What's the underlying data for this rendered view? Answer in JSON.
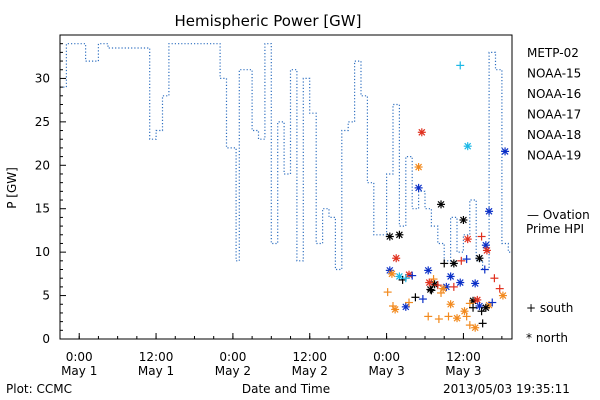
{
  "chart_data": {
    "type": "scatter",
    "title": "Hemispheric Power [GW]",
    "ylabel": "P [GW]",
    "xlabel": "Date and Time",
    "ylim": [
      0,
      35
    ],
    "yticks": [
      0,
      5,
      10,
      15,
      20,
      25,
      30
    ],
    "xlim": [
      "2013-04-30T21:00",
      "2013-05-03T19:35"
    ],
    "xticks": [
      {
        "time": "2013-05-01T00:00",
        "line1": "0:00",
        "line2": "May 1"
      },
      {
        "time": "2013-05-01T12:00",
        "line1": "12:00",
        "line2": "May 1"
      },
      {
        "time": "2013-05-02T00:00",
        "line1": "0:00",
        "line2": "May 2"
      },
      {
        "time": "2013-05-02T12:00",
        "line1": "12:00",
        "line2": "May 2"
      },
      {
        "time": "2013-05-03T00:00",
        "line1": "0:00",
        "line2": "May 3"
      },
      {
        "time": "2013-05-03T12:00",
        "line1": "12:00",
        "line2": "May 3"
      }
    ],
    "ovation_label": [
      "— Ovation",
      "Prime HPI"
    ],
    "ovation_color": "#3070c0",
    "ovation_series": {
      "name": "Ovation Prime HPI",
      "x": [
        "2013-04-30T21:00",
        "2013-04-30T22:00",
        "2013-04-30T22:00",
        "2013-05-01T01:00",
        "2013-05-01T01:00",
        "2013-05-01T03:00",
        "2013-05-01T03:00",
        "2013-05-01T04:30",
        "2013-05-01T04:30",
        "2013-05-01T11:00",
        "2013-05-01T11:00",
        "2013-05-01T12:00",
        "2013-05-01T12:00",
        "2013-05-01T13:00",
        "2013-05-01T13:00",
        "2013-05-01T14:00",
        "2013-05-01T14:00",
        "2013-05-01T22:00",
        "2013-05-01T22:00",
        "2013-05-01T23:00",
        "2013-05-01T23:00",
        "2013-05-02T00:30",
        "2013-05-02T00:30",
        "2013-05-02T01:00",
        "2013-05-02T01:00",
        "2013-05-02T03:00",
        "2013-05-02T03:00",
        "2013-05-02T04:00",
        "2013-05-02T04:00",
        "2013-05-02T05:00",
        "2013-05-02T05:00",
        "2013-05-02T06:00",
        "2013-05-02T06:00",
        "2013-05-02T07:00",
        "2013-05-02T07:00",
        "2013-05-02T08:00",
        "2013-05-02T08:00",
        "2013-05-02T09:00",
        "2013-05-02T09:00",
        "2013-05-02T10:00",
        "2013-05-02T10:00",
        "2013-05-02T11:00",
        "2013-05-02T11:00",
        "2013-05-02T12:00",
        "2013-05-02T12:00",
        "2013-05-02T13:00",
        "2013-05-02T13:00",
        "2013-05-02T14:00",
        "2013-05-02T14:00",
        "2013-05-02T15:00",
        "2013-05-02T15:00",
        "2013-05-02T16:00",
        "2013-05-02T16:00",
        "2013-05-02T17:00",
        "2013-05-02T17:00",
        "2013-05-02T18:00",
        "2013-05-02T18:00",
        "2013-05-02T19:00",
        "2013-05-02T19:00",
        "2013-05-02T20:00",
        "2013-05-02T20:00",
        "2013-05-02T21:00",
        "2013-05-02T21:00",
        "2013-05-02T22:00",
        "2013-05-02T22:00",
        "2013-05-03T00:00",
        "2013-05-03T00:00",
        "2013-05-03T01:00",
        "2013-05-03T01:00",
        "2013-05-03T02:00",
        "2013-05-03T02:00",
        "2013-05-03T03:00",
        "2013-05-03T03:00",
        "2013-05-03T04:00",
        "2013-05-03T04:00",
        "2013-05-03T05:00",
        "2013-05-03T05:00",
        "2013-05-03T06:00",
        "2013-05-03T06:00",
        "2013-05-03T07:00",
        "2013-05-03T07:00",
        "2013-05-03T08:00",
        "2013-05-03T08:00",
        "2013-05-03T09:00",
        "2013-05-03T09:00",
        "2013-05-03T10:00",
        "2013-05-03T10:00",
        "2013-05-03T11:00",
        "2013-05-03T11:00",
        "2013-05-03T12:00",
        "2013-05-03T12:00",
        "2013-05-03T13:00",
        "2013-05-03T13:00",
        "2013-05-03T14:00",
        "2013-05-03T14:00",
        "2013-05-03T15:00",
        "2013-05-03T15:00",
        "2013-05-03T16:00",
        "2013-05-03T16:00",
        "2013-05-03T17:00",
        "2013-05-03T17:00",
        "2013-05-03T18:00",
        "2013-05-03T18:00",
        "2013-05-03T19:00",
        "2013-05-03T19:00",
        "2013-05-03T19:35"
      ],
      "y": [
        29,
        29,
        34,
        34,
        32,
        32,
        34,
        34,
        33.5,
        33.5,
        23,
        23,
        24,
        24,
        28,
        28,
        34,
        34,
        30,
        30,
        22,
        22,
        9,
        9,
        31,
        31,
        24,
        24,
        23,
        23,
        34,
        34,
        11,
        11,
        25,
        25,
        19,
        19,
        31,
        31,
        9,
        9,
        30,
        30,
        26,
        26,
        11,
        11,
        15,
        15,
        14,
        14,
        8,
        8,
        24,
        24,
        25,
        25,
        32,
        32,
        28,
        28,
        18,
        18,
        12,
        12,
        19,
        19,
        27,
        27,
        13,
        13,
        21,
        21,
        15,
        15,
        17,
        17,
        15,
        15,
        13,
        13,
        11,
        11,
        9,
        9,
        14,
        14,
        10,
        10,
        12,
        12,
        16,
        16,
        9,
        9,
        8,
        8,
        33,
        33,
        31,
        31,
        11,
        11,
        10,
        10
      ]
    },
    "legend_series": [
      {
        "name": "METP-02",
        "color": "#000000"
      },
      {
        "name": "NOAA-15",
        "color": "#0a2fc7"
      },
      {
        "name": "NOAA-16",
        "color": "#1cb8e6"
      },
      {
        "name": "NOAA-17",
        "color": "#2ed17a"
      },
      {
        "name": "NOAA-18",
        "color": "#f28a1e"
      },
      {
        "name": "NOAA-19",
        "color": "#e0301e"
      }
    ],
    "marker_legend": [
      {
        "symbol": "+",
        "label": "south"
      },
      {
        "symbol": "*",
        "label": "north"
      }
    ],
    "points": [
      {
        "sat": "NOAA-19",
        "m": "*",
        "t": "2013-05-03T05:30",
        "y": 23.8
      },
      {
        "sat": "NOAA-18",
        "m": "*",
        "t": "2013-05-03T05:00",
        "y": 19.8
      },
      {
        "sat": "NOAA-15",
        "m": "*",
        "t": "2013-05-03T05:00",
        "y": 17.4
      },
      {
        "sat": "METP-02",
        "m": "*",
        "t": "2013-05-03T08:30",
        "y": 15.5
      },
      {
        "sat": "METP-02",
        "m": "*",
        "t": "2013-05-03T12:00",
        "y": 13.7
      },
      {
        "sat": "NOAA-15",
        "m": "*",
        "t": "2013-05-03T16:00",
        "y": 14.7
      },
      {
        "sat": "NOAA-16",
        "m": "*",
        "t": "2013-05-03T12:40",
        "y": 22.2
      },
      {
        "sat": "NOAA-16",
        "m": "+",
        "t": "2013-05-03T11:30",
        "y": 31.5
      },
      {
        "sat": "NOAA-15",
        "m": "*",
        "t": "2013-05-03T18:30",
        "y": 21.6
      },
      {
        "sat": "METP-02",
        "m": "*",
        "t": "2013-05-03T00:30",
        "y": 11.8
      },
      {
        "sat": "METP-02",
        "m": "*",
        "t": "2013-05-03T02:00",
        "y": 12.0
      },
      {
        "sat": "NOAA-19",
        "m": "*",
        "t": "2013-05-03T12:40",
        "y": 11.5
      },
      {
        "sat": "NOAA-19",
        "m": "+",
        "t": "2013-05-03T14:50",
        "y": 11.8
      },
      {
        "sat": "NOAA-15",
        "m": "*",
        "t": "2013-05-03T15:30",
        "y": 10.8
      },
      {
        "sat": "NOAA-19",
        "m": "*",
        "t": "2013-05-03T15:40",
        "y": 10.2
      },
      {
        "sat": "NOAA-19",
        "m": "*",
        "t": "2013-05-03T01:30",
        "y": 9.3
      },
      {
        "sat": "METP-02",
        "m": "*",
        "t": "2013-05-03T10:30",
        "y": 8.7
      },
      {
        "sat": "METP-02",
        "m": "*",
        "t": "2013-05-03T14:30",
        "y": 9.3
      },
      {
        "sat": "NOAA-15",
        "m": "+",
        "t": "2013-05-03T12:30",
        "y": 9.2
      },
      {
        "sat": "NOAA-19",
        "m": "+",
        "t": "2013-05-03T11:40",
        "y": 9.0
      },
      {
        "sat": "NOAA-15",
        "m": "*",
        "t": "2013-05-03T00:30",
        "y": 7.9
      },
      {
        "sat": "NOAA-16",
        "m": "*",
        "t": "2013-05-03T02:00",
        "y": 7.2
      },
      {
        "sat": "NOAA-18",
        "m": "*",
        "t": "2013-05-03T00:50",
        "y": 7.5
      },
      {
        "sat": "NOAA-15",
        "m": "*",
        "t": "2013-05-03T06:30",
        "y": 7.9
      },
      {
        "sat": "METP-02",
        "m": "+",
        "t": "2013-05-03T09:00",
        "y": 8.7
      },
      {
        "sat": "NOAA-19",
        "m": "*",
        "t": "2013-05-03T03:30",
        "y": 7.4
      },
      {
        "sat": "NOAA-15",
        "m": "+",
        "t": "2013-05-03T04:00",
        "y": 7.3
      },
      {
        "sat": "METP-02",
        "m": "+",
        "t": "2013-05-03T02:30",
        "y": 6.8
      },
      {
        "sat": "NOAA-18",
        "m": "+",
        "t": "2013-05-03T07:20",
        "y": 6.9
      },
      {
        "sat": "METP-02",
        "m": "*",
        "t": "2013-05-03T07:30",
        "y": 6.3
      },
      {
        "sat": "NOAA-15",
        "m": "*",
        "t": "2013-05-03T10:00",
        "y": 7.2
      },
      {
        "sat": "NOAA-16",
        "m": "+",
        "t": "2013-05-03T03:00",
        "y": 7.0
      },
      {
        "sat": "NOAA-19",
        "m": "+",
        "t": "2013-05-03T08:00",
        "y": 6.2
      },
      {
        "sat": "NOAA-18",
        "m": "+",
        "t": "2013-05-03T08:30",
        "y": 5.3
      },
      {
        "sat": "NOAA-15",
        "m": "*",
        "t": "2013-05-03T09:20",
        "y": 6.0
      },
      {
        "sat": "NOAA-19",
        "m": "+",
        "t": "2013-05-03T10:30",
        "y": 6.0
      },
      {
        "sat": "NOAA-18",
        "m": "*",
        "t": "2013-05-03T08:50",
        "y": 5.8
      },
      {
        "sat": "METP-02",
        "m": "+",
        "t": "2013-05-03T07:00",
        "y": 5.6
      },
      {
        "sat": "NOAA-15",
        "m": "*",
        "t": "2013-05-03T11:30",
        "y": 6.5
      },
      {
        "sat": "NOAA-15",
        "m": "*",
        "t": "2013-05-03T13:50",
        "y": 6.4
      },
      {
        "sat": "NOAA-15",
        "m": "+",
        "t": "2013-05-03T15:20",
        "y": 8.0
      },
      {
        "sat": "METP-02",
        "m": "+",
        "t": "2013-05-03T04:30",
        "y": 4.8
      },
      {
        "sat": "NOAA-15",
        "m": "+",
        "t": "2013-05-03T05:40",
        "y": 4.6
      },
      {
        "sat": "NOAA-18",
        "m": "+",
        "t": "2013-05-03T00:10",
        "y": 5.4
      },
      {
        "sat": "NOAA-18",
        "m": "+",
        "t": "2013-05-03T01:00",
        "y": 3.8
      },
      {
        "sat": "NOAA-18",
        "m": "*",
        "t": "2013-05-03T01:20",
        "y": 3.4
      },
      {
        "sat": "NOAA-15",
        "m": "*",
        "t": "2013-05-03T03:00",
        "y": 3.7
      },
      {
        "sat": "NOAA-18",
        "m": "+",
        "t": "2013-05-03T03:30",
        "y": 4.2
      },
      {
        "sat": "METP-02",
        "m": "*",
        "t": "2013-05-03T13:30",
        "y": 4.4
      },
      {
        "sat": "NOAA-19",
        "m": "*",
        "t": "2013-05-03T14:10",
        "y": 4.5
      },
      {
        "sat": "NOAA-18",
        "m": "*",
        "t": "2013-05-03T10:00",
        "y": 4.0
      },
      {
        "sat": "NOAA-18",
        "m": "*",
        "t": "2013-05-03T12:10",
        "y": 3.2
      },
      {
        "sat": "NOAA-18",
        "m": "+",
        "t": "2013-05-03T13:00",
        "y": 4.1
      },
      {
        "sat": "METP-02",
        "m": "+",
        "t": "2013-05-03T13:30",
        "y": 3.6
      },
      {
        "sat": "NOAA-15",
        "m": "*",
        "t": "2013-05-03T14:30",
        "y": 3.8
      },
      {
        "sat": "NOAA-18",
        "m": "*",
        "t": "2013-05-03T16:00",
        "y": 3.9
      },
      {
        "sat": "NOAA-15",
        "m": "+",
        "t": "2013-05-03T16:30",
        "y": 4.2
      },
      {
        "sat": "METP-02",
        "m": "*",
        "t": "2013-05-03T15:30",
        "y": 3.6
      },
      {
        "sat": "METP-02",
        "m": "+",
        "t": "2013-05-03T14:50",
        "y": 3.2
      },
      {
        "sat": "NOAA-18",
        "m": "+",
        "t": "2013-05-03T06:30",
        "y": 2.6
      },
      {
        "sat": "NOAA-18",
        "m": "+",
        "t": "2013-05-03T08:10",
        "y": 2.3
      },
      {
        "sat": "NOAA-18",
        "m": "+",
        "t": "2013-05-03T09:40",
        "y": 2.6
      },
      {
        "sat": "NOAA-18",
        "m": "*",
        "t": "2013-05-03T11:00",
        "y": 2.4
      },
      {
        "sat": "NOAA-18",
        "m": "+",
        "t": "2013-05-03T12:30",
        "y": 2.6
      },
      {
        "sat": "NOAA-18",
        "m": "+",
        "t": "2013-05-03T13:00",
        "y": 1.6
      },
      {
        "sat": "NOAA-18",
        "m": "*",
        "t": "2013-05-03T13:50",
        "y": 1.3
      },
      {
        "sat": "METP-02",
        "m": "+",
        "t": "2013-05-03T15:00",
        "y": 1.8
      },
      {
        "sat": "NOAA-19",
        "m": "+",
        "t": "2013-05-03T16:50",
        "y": 7.0
      },
      {
        "sat": "NOAA-19",
        "m": "+",
        "t": "2013-05-03T17:40",
        "y": 5.8
      },
      {
        "sat": "NOAA-18",
        "m": "*",
        "t": "2013-05-03T18:10",
        "y": 5.0
      },
      {
        "sat": "METP-02",
        "m": "*",
        "t": "2013-05-03T06:50",
        "y": 5.7
      },
      {
        "sat": "NOAA-19",
        "m": "*",
        "t": "2013-05-03T06:40",
        "y": 6.5
      }
    ]
  },
  "footer": {
    "plot_label": "Plot: CCMC",
    "timestamp": "2013/05/03 19:35:11"
  }
}
